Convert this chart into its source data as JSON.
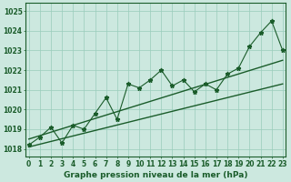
{
  "x": [
    0,
    1,
    2,
    3,
    4,
    5,
    6,
    7,
    8,
    9,
    10,
    11,
    12,
    13,
    14,
    15,
    16,
    17,
    18,
    19,
    20,
    21,
    22,
    23
  ],
  "y": [
    1018.2,
    1018.6,
    1019.1,
    1018.3,
    1019.2,
    1019.0,
    1019.8,
    1020.6,
    1019.5,
    1021.3,
    1021.1,
    1021.5,
    1022.0,
    1021.2,
    1021.5,
    1020.9,
    1021.3,
    1021.0,
    1021.8,
    1022.1,
    1023.2,
    1023.9,
    1024.5,
    1023.0
  ],
  "trend1_x": [
    0,
    23
  ],
  "trend1_y": [
    1018.5,
    1022.5
  ],
  "trend2_x": [
    0,
    23
  ],
  "trend2_y": [
    1018.1,
    1021.3
  ],
  "ylim": [
    1017.6,
    1025.4
  ],
  "xlim": [
    -0.3,
    23.3
  ],
  "yticks": [
    1018,
    1019,
    1020,
    1021,
    1022,
    1023,
    1024,
    1025
  ],
  "xticks": [
    0,
    1,
    2,
    3,
    4,
    5,
    6,
    7,
    8,
    9,
    10,
    11,
    12,
    13,
    14,
    15,
    16,
    17,
    18,
    19,
    20,
    21,
    22,
    23
  ],
  "xlabel": "Graphe pression niveau de la mer (hPa)",
  "bg_color": "#cce8df",
  "grid_color": "#99ccbb",
  "line_color": "#1a5c2a",
  "marker": "*",
  "markersize": 3.5,
  "linewidth": 0.8,
  "trend_linewidth": 1.0,
  "tick_fontsize": 5.5,
  "xlabel_fontsize": 6.5,
  "xlabel_fontweight": "bold"
}
